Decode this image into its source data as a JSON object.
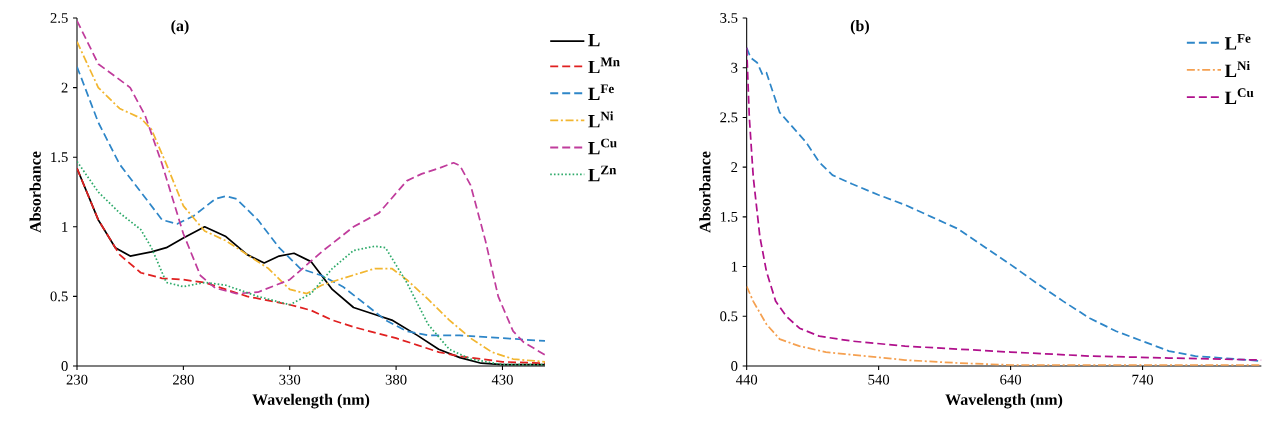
{
  "chart_data": [
    {
      "type": "line",
      "title": "(a)",
      "xlabel": "Wavelength  (nm)",
      "ylabel": "Absorbance",
      "xlim": [
        230,
        450
      ],
      "ylim": [
        0,
        2.5
      ],
      "xticks": [
        230,
        280,
        330,
        380,
        430
      ],
      "yticks": [
        0,
        0.5,
        1,
        1.5,
        2,
        2.5
      ],
      "legend": "right",
      "series": [
        {
          "name": "L",
          "color": "#000000",
          "line_style": "solid",
          "x": [
            230,
            240,
            248,
            255,
            265,
            272,
            280,
            290,
            300,
            310,
            318,
            325,
            332,
            340,
            350,
            360,
            370,
            378,
            390,
            400,
            410,
            420,
            430,
            450
          ],
          "values": [
            1.42,
            1.05,
            0.85,
            0.79,
            0.82,
            0.85,
            0.92,
            1.0,
            0.93,
            0.8,
            0.74,
            0.79,
            0.81,
            0.75,
            0.55,
            0.42,
            0.37,
            0.33,
            0.22,
            0.12,
            0.06,
            0.02,
            0.01,
            0.01
          ]
        },
        {
          "name": "L$^{Mn}$",
          "color": "#e02020",
          "line_style": "dashed",
          "x": [
            230,
            240,
            250,
            260,
            270,
            280,
            290,
            300,
            310,
            320,
            330,
            340,
            350,
            360,
            370,
            380,
            390,
            400,
            410,
            420,
            430,
            450
          ],
          "values": [
            1.42,
            1.05,
            0.8,
            0.67,
            0.63,
            0.62,
            0.6,
            0.55,
            0.5,
            0.47,
            0.44,
            0.4,
            0.33,
            0.28,
            0.24,
            0.2,
            0.15,
            0.1,
            0.07,
            0.05,
            0.03,
            0.02
          ]
        },
        {
          "name": "L$^{Fe}$",
          "color": "#2e86c8",
          "line_style": "dashed",
          "x": [
            230,
            240,
            250,
            260,
            270,
            277,
            285,
            295,
            300,
            305,
            315,
            325,
            335,
            345,
            355,
            365,
            375,
            385,
            395,
            410,
            430,
            450
          ],
          "values": [
            2.15,
            1.75,
            1.45,
            1.25,
            1.05,
            1.02,
            1.08,
            1.2,
            1.22,
            1.2,
            1.05,
            0.85,
            0.7,
            0.65,
            0.57,
            0.45,
            0.33,
            0.25,
            0.22,
            0.22,
            0.2,
            0.18
          ]
        },
        {
          "name": "L$^{Ni}$",
          "color": "#f2b630",
          "line_style": "dashdot",
          "x": [
            230,
            240,
            250,
            260,
            265,
            272,
            280,
            290,
            300,
            310,
            320,
            330,
            338,
            345,
            355,
            370,
            378,
            385,
            395,
            405,
            415,
            425,
            435,
            450
          ],
          "values": [
            2.33,
            2.0,
            1.85,
            1.78,
            1.7,
            1.45,
            1.15,
            0.97,
            0.9,
            0.8,
            0.7,
            0.55,
            0.52,
            0.58,
            0.63,
            0.7,
            0.7,
            0.62,
            0.48,
            0.33,
            0.2,
            0.1,
            0.05,
            0.03
          ]
        },
        {
          "name": "L$^{Cu}$",
          "color": "#c03c9c",
          "line_style": "dashed",
          "x": [
            230,
            240,
            248,
            255,
            262,
            270,
            280,
            288,
            295,
            305,
            315,
            330,
            345,
            360,
            372,
            385,
            392,
            400,
            407,
            410,
            415,
            422,
            428,
            435,
            440,
            450
          ],
          "values": [
            2.48,
            2.17,
            2.08,
            2.0,
            1.8,
            1.45,
            0.95,
            0.65,
            0.56,
            0.52,
            0.53,
            0.62,
            0.82,
            1.0,
            1.1,
            1.33,
            1.38,
            1.42,
            1.46,
            1.44,
            1.3,
            0.9,
            0.5,
            0.25,
            0.17,
            0.08
          ]
        },
        {
          "name": "L$^{Zn}$",
          "color": "#2eaa6a",
          "line_style": "dotted",
          "x": [
            230,
            240,
            250,
            260,
            265,
            272,
            280,
            290,
            300,
            315,
            330,
            340,
            350,
            360,
            370,
            375,
            385,
            395,
            405,
            415,
            430,
            450
          ],
          "values": [
            1.47,
            1.25,
            1.1,
            0.98,
            0.85,
            0.6,
            0.57,
            0.6,
            0.58,
            0.5,
            0.44,
            0.52,
            0.7,
            0.83,
            0.86,
            0.85,
            0.6,
            0.3,
            0.12,
            0.05,
            0.01,
            0.01
          ]
        }
      ]
    },
    {
      "type": "line",
      "title": "(b)",
      "xlabel": "Wavelength  (nm)",
      "ylabel": "Absorbance",
      "xlim": [
        440,
        830
      ],
      "ylim": [
        0,
        3.5
      ],
      "xticks": [
        440,
        540,
        640,
        740
      ],
      "yticks": [
        0,
        0.5,
        1,
        1.5,
        2,
        2.5,
        3,
        3.5
      ],
      "legend": "top right",
      "series": [
        {
          "name": "L$^{Fe}$",
          "color": "#2e86c8",
          "line_style": "dashed",
          "x": [
            440,
            443,
            448,
            452,
            455,
            460,
            465,
            475,
            485,
            495,
            505,
            520,
            540,
            560,
            580,
            600,
            620,
            640,
            660,
            680,
            700,
            720,
            740,
            760,
            780,
            800,
            830
          ],
          "values": [
            3.2,
            3.1,
            3.05,
            2.93,
            2.95,
            2.75,
            2.55,
            2.4,
            2.25,
            2.05,
            1.92,
            1.83,
            1.72,
            1.62,
            1.5,
            1.38,
            1.2,
            1.02,
            0.83,
            0.65,
            0.48,
            0.35,
            0.25,
            0.15,
            0.1,
            0.08,
            0.05
          ]
        },
        {
          "name": "L$^{Ni}$",
          "color": "#f5a050",
          "line_style": "dashdot",
          "x": [
            440,
            445,
            455,
            465,
            480,
            500,
            530,
            560,
            600,
            640,
            700,
            830
          ],
          "values": [
            0.8,
            0.65,
            0.42,
            0.27,
            0.2,
            0.14,
            0.1,
            0.06,
            0.03,
            0.01,
            0.01,
            0.01
          ]
        },
        {
          "name": "L$^{Cu}$",
          "color": "#b0108c",
          "line_style": "dashed",
          "x": [
            440,
            442,
            445,
            450,
            455,
            462,
            470,
            480,
            495,
            520,
            560,
            600,
            640,
            700,
            760,
            830
          ],
          "values": [
            3.2,
            2.5,
            1.9,
            1.3,
            0.95,
            0.65,
            0.5,
            0.38,
            0.3,
            0.25,
            0.2,
            0.17,
            0.14,
            0.1,
            0.08,
            0.06
          ]
        }
      ]
    }
  ]
}
